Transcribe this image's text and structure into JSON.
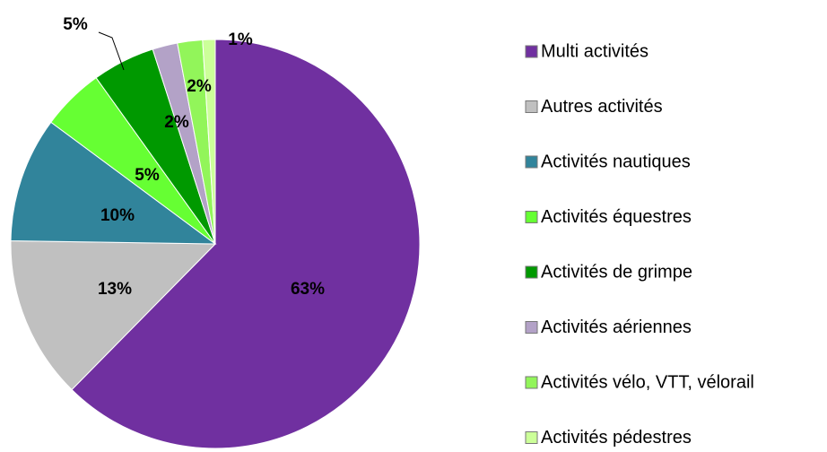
{
  "chart_data": {
    "type": "pie",
    "categories": [
      "Multi activités",
      "Autres activités",
      "Activités nautiques",
      "Activités équestres",
      "Activités de grimpe",
      "Activités aériennes",
      "Activités vélo, VTT, vélorail",
      "Activités pédestres"
    ],
    "values": [
      63,
      13,
      10,
      5,
      5,
      2,
      2,
      1
    ],
    "value_labels": [
      "63%",
      "13%",
      "10%",
      "5%",
      "5%",
      "2%",
      "2%",
      "1%"
    ],
    "colors": [
      "#7030a0",
      "#c0c0c0",
      "#31849b",
      "#66ff33",
      "#009900",
      "#b3a2c7",
      "#92f55a",
      "#ccff99"
    ],
    "legend": "right"
  }
}
